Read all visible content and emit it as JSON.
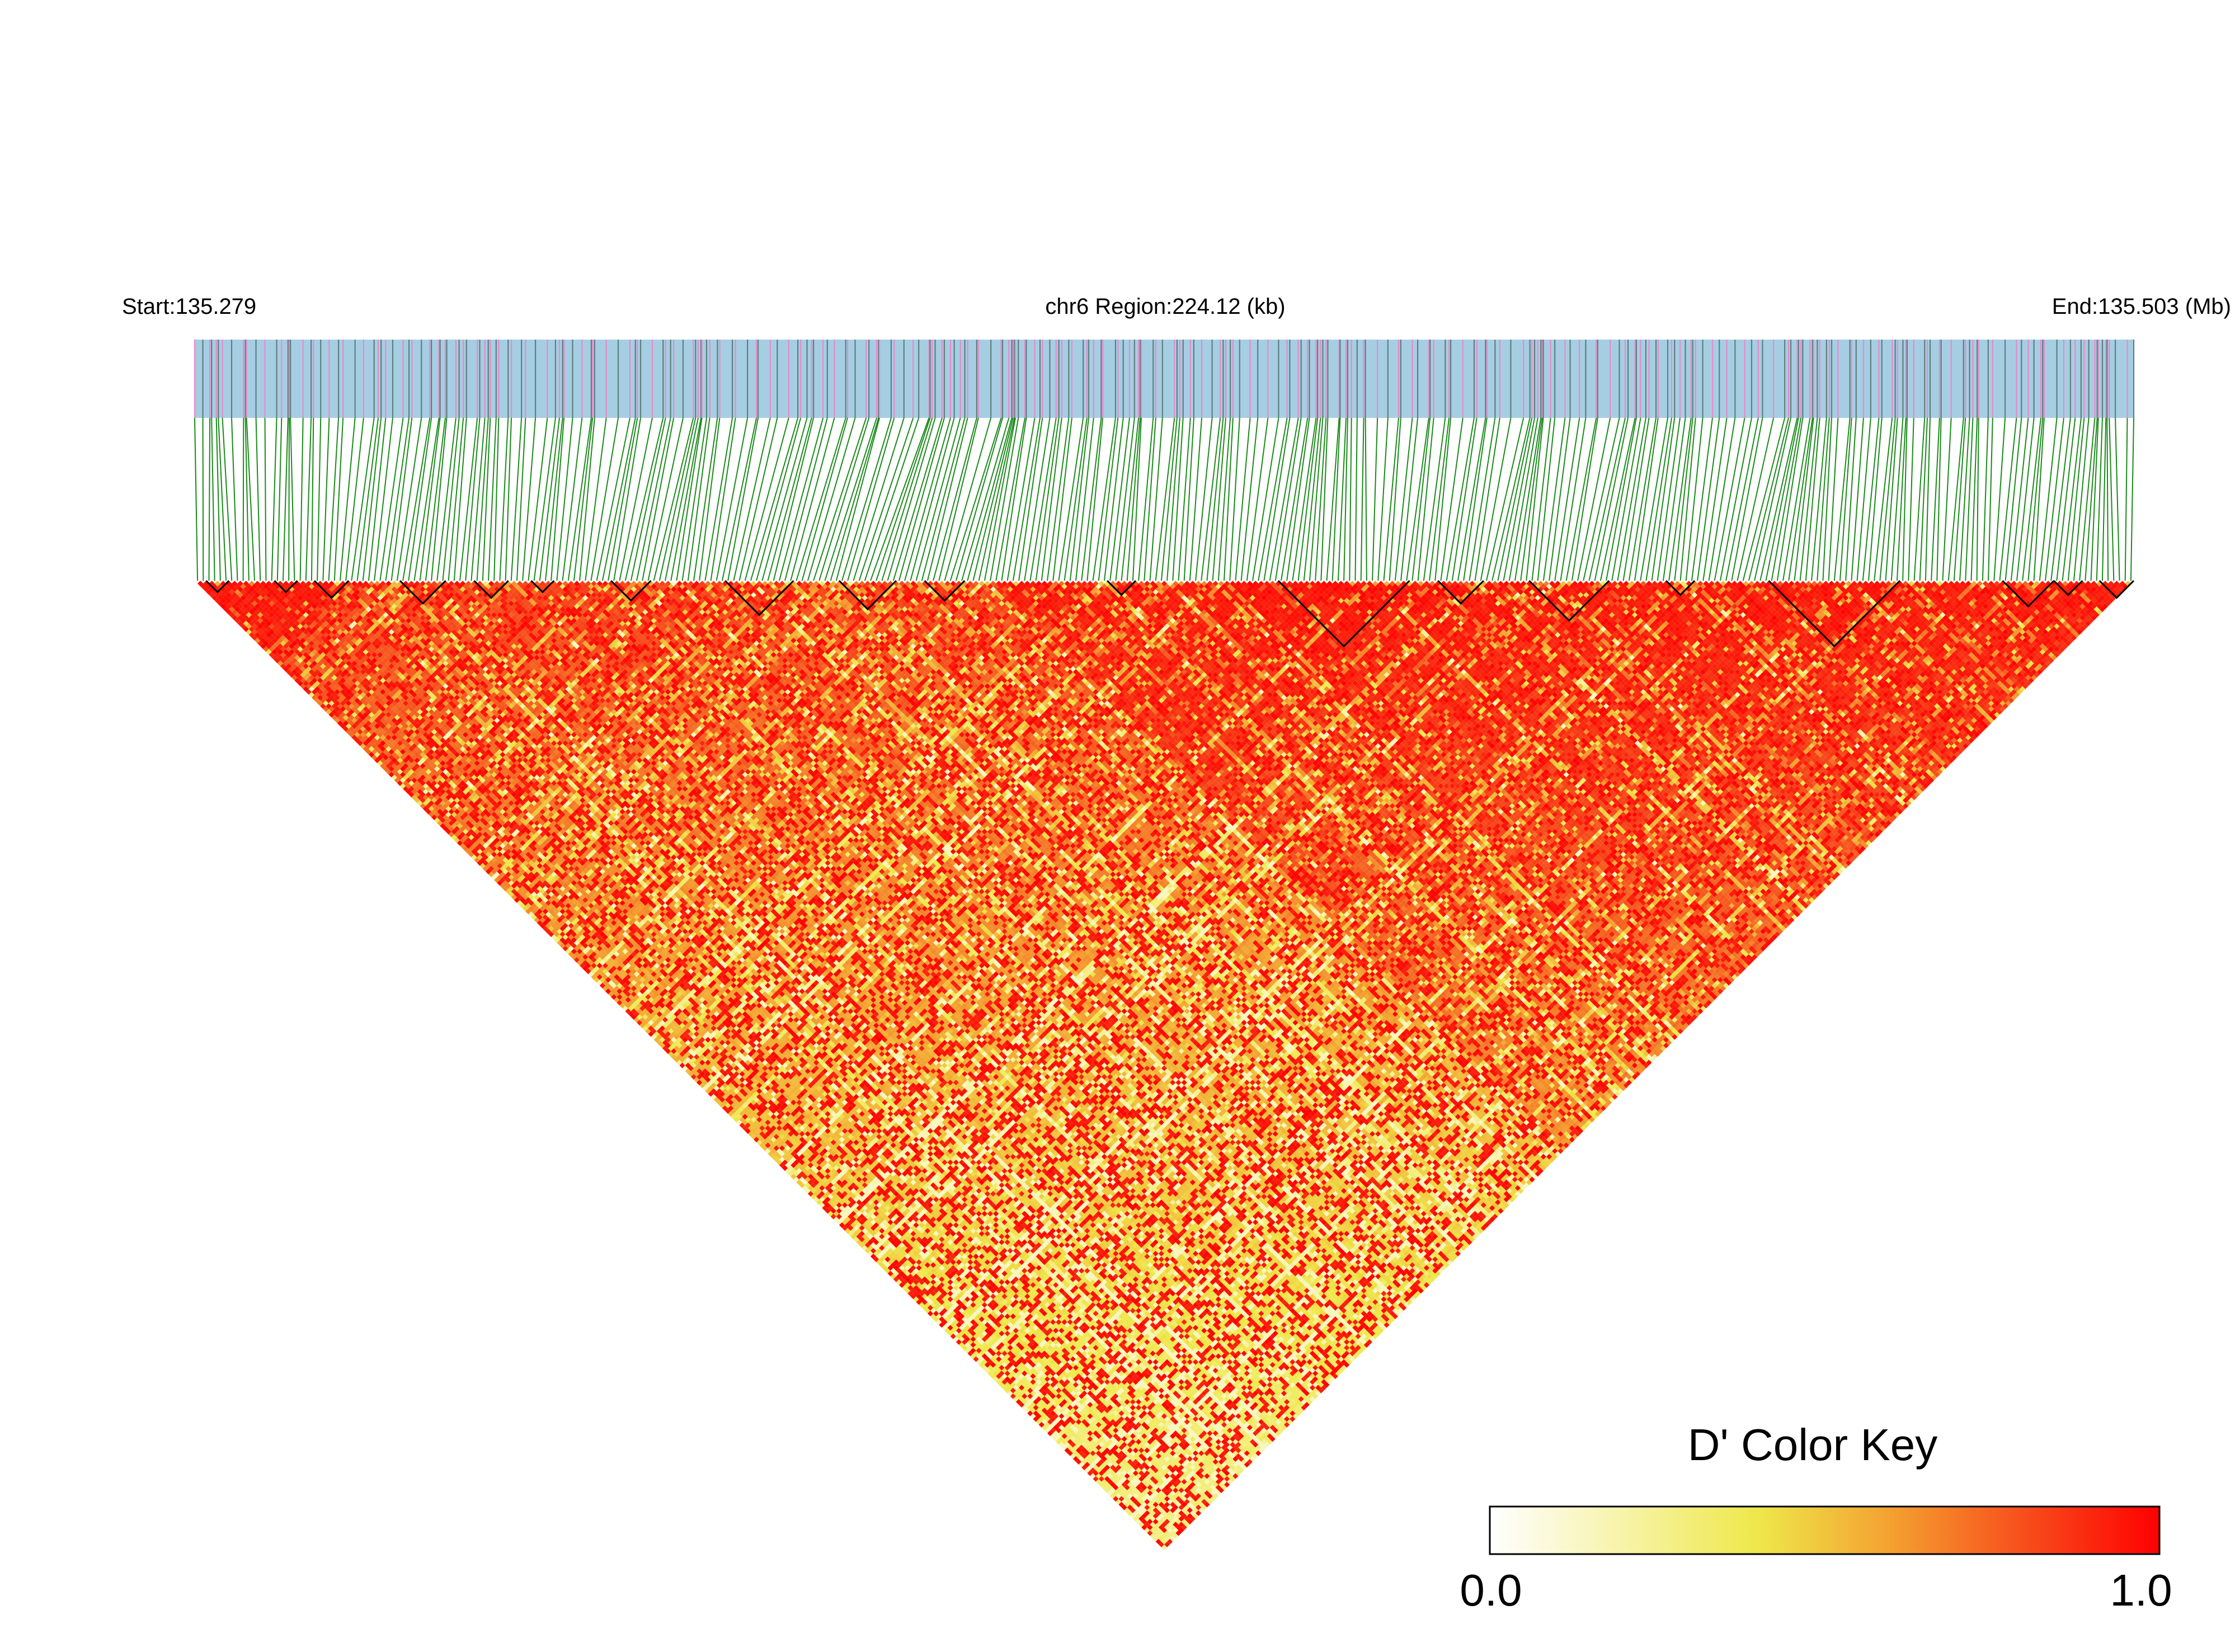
{
  "chart_data": {
    "type": "heatmap",
    "subtype": "linkage-disequilibrium-triangle",
    "header": {
      "start_label": "Start:135.279",
      "region_label": "chr6 Region:224.12 (kb)",
      "end_label": "End:135.503 (Mb)"
    },
    "chromosome": "chr6",
    "region_start_mb": 135.279,
    "region_end_mb": 135.503,
    "region_length_kb": 224.12,
    "snp_count": 340,
    "metric": "D'",
    "color_key": {
      "title": "D' Color Key",
      "min_label": "0.0",
      "max_label": "1.0",
      "min": 0.0,
      "max": 1.0,
      "stops": [
        "#ffffff",
        "#f7f3a8",
        "#eee84a",
        "#f4a030",
        "#f74d1c",
        "#ff0000"
      ]
    },
    "colors": {
      "snp_bar": "#a6cee3",
      "snp_tick_dark": "#5f7f7f",
      "snp_tick_pink": "#e889c9",
      "connector_lines": "#1a8a1a",
      "block_outline": "#000000"
    },
    "ld_blocks_snp_index_ranges": [
      [
        2,
        5
      ],
      [
        14,
        17
      ],
      [
        21,
        26
      ],
      [
        36,
        43
      ],
      [
        49,
        54
      ],
      [
        59,
        62
      ],
      [
        73,
        79
      ],
      [
        93,
        104
      ],
      [
        113,
        122
      ],
      [
        128,
        134
      ],
      [
        160,
        164
      ],
      [
        190,
        212
      ],
      [
        218,
        225
      ],
      [
        234,
        247
      ],
      [
        258,
        262
      ],
      [
        276,
        298
      ],
      [
        317,
        325
      ],
      [
        326,
        330
      ],
      [
        334,
        339
      ]
    ]
  }
}
